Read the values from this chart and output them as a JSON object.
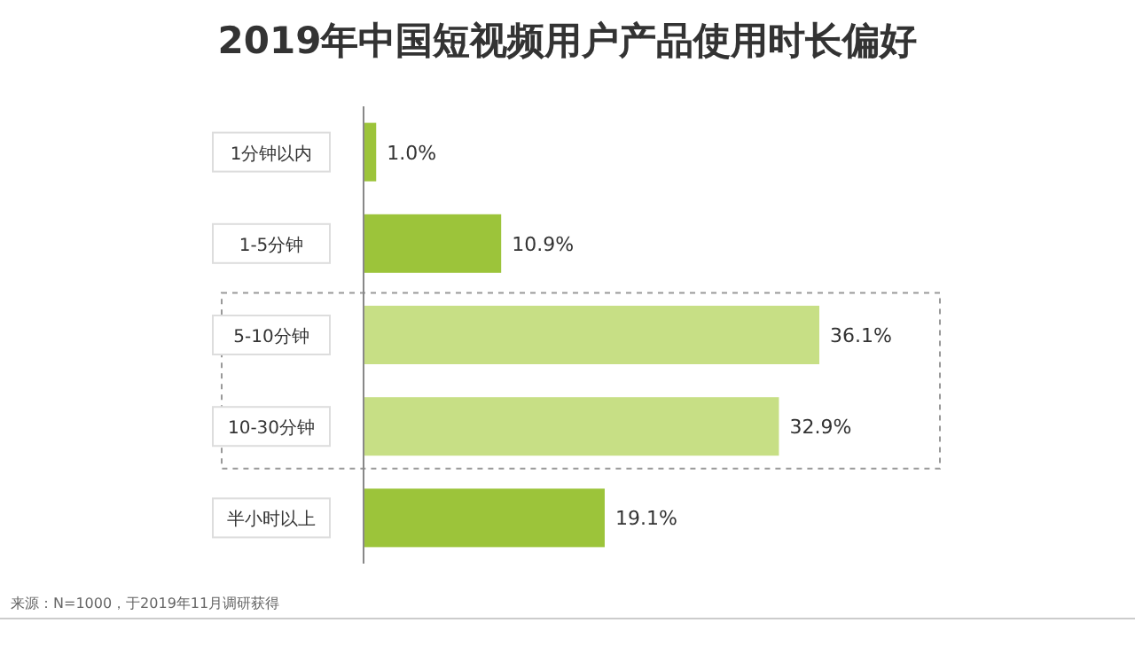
{
  "chart_data": {
    "type": "bar",
    "orientation": "horizontal",
    "title": "2019年中国短视频用户产品使用时长偏好",
    "categories": [
      "1分钟以内",
      "1-5分钟",
      "5-10分钟",
      "10-30分钟",
      "半小时以上"
    ],
    "values": [
      1.0,
      10.9,
      36.1,
      32.9,
      19.1
    ],
    "value_labels": [
      "1.0%",
      "10.9%",
      "36.1%",
      "32.9%",
      "19.1%"
    ],
    "colors": [
      "#9cc43a",
      "#9cc43a",
      "#c7df85",
      "#c7df85",
      "#9cc43a"
    ],
    "xlim": [
      0,
      36.1
    ],
    "tick_labels": "y",
    "grid": false,
    "annotations": [
      "来源：N=1000，于2019年11月调研获得"
    ]
  }
}
